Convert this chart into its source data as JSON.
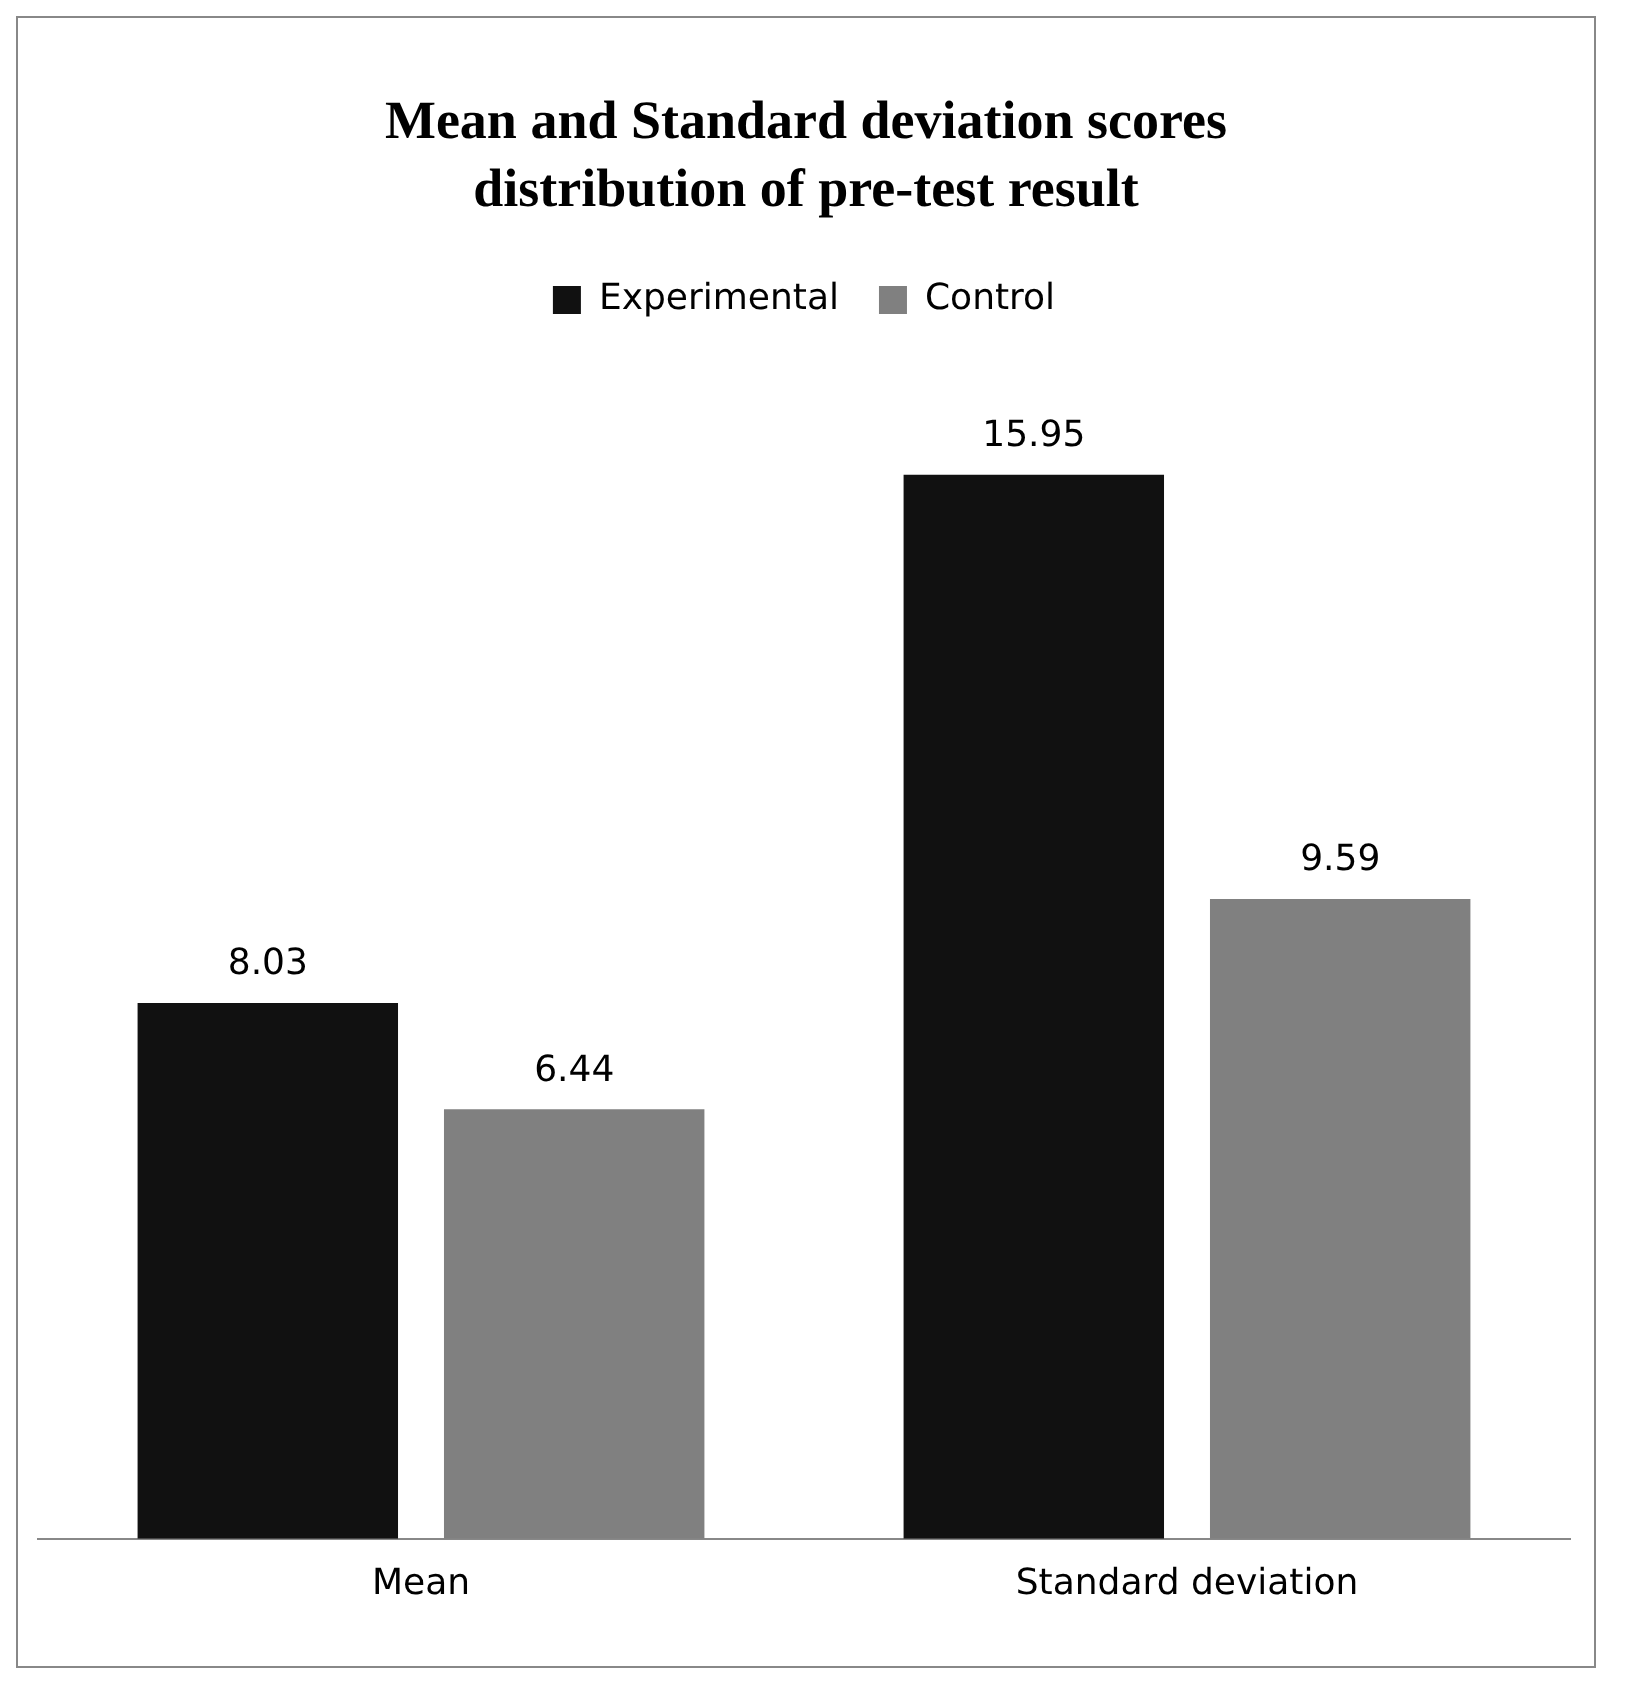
{
  "chart_data": {
    "type": "bar",
    "title": "Mean and Standard deviation scores distribution of pre-test result",
    "categories": [
      "Mean",
      "Standard deviation"
    ],
    "series": [
      {
        "name": "Experimental",
        "color": "#111111",
        "values": [
          8.03,
          15.95
        ]
      },
      {
        "name": "Control",
        "color": "#808080",
        "values": [
          6.44,
          9.59
        ]
      }
    ],
    "data_labels": true,
    "legend": "top",
    "grid": false
  }
}
